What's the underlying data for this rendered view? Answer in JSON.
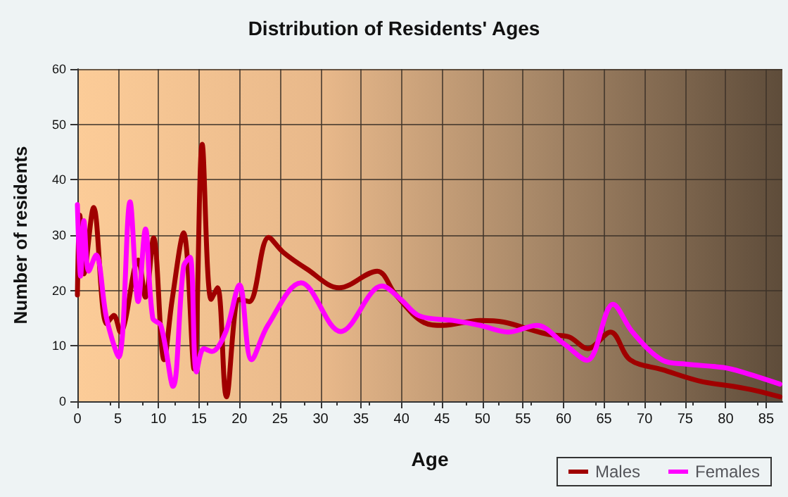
{
  "chart_data": {
    "type": "line",
    "title": "Distribution of Residents' Ages",
    "xlabel": "Age",
    "ylabel": "Number of residents",
    "xlim": [
      0,
      87
    ],
    "xticks": [
      0,
      5,
      10,
      15,
      20,
      25,
      30,
      35,
      40,
      45,
      50,
      55,
      60,
      65,
      70,
      75,
      80,
      85
    ],
    "ylim": [
      0,
      60
    ],
    "yticks": [
      0,
      10,
      20,
      30,
      40,
      50,
      60
    ],
    "grid": true,
    "legend": "bottom right",
    "marker": "none",
    "line_style": "solid",
    "series": [
      {
        "name": "Males",
        "color": "#a00000",
        "x": [
          0,
          0.3,
          0.8,
          2,
          3.6,
          4.5,
          5.3,
          7.5,
          8.4,
          9.4,
          10.7,
          11.7,
          13.1,
          14.4,
          15.4,
          16.5,
          17.3,
          18.4,
          20,
          21.2,
          23.6,
          25.4,
          28.3,
          32.3,
          37,
          39.3,
          42.8,
          45.1,
          49.7,
          52.6,
          56.7,
          58.4,
          60.7,
          63,
          65.8,
          68.2,
          72.2,
          76.9,
          80.9,
          83.8,
          86.7
        ],
        "values": [
          19.2,
          33.6,
          23,
          35,
          14,
          15.5,
          12.5,
          25.5,
          18.8,
          29.5,
          7.5,
          18.4,
          30.4,
          5.8,
          46.4,
          18.4,
          20.5,
          0.8,
          18.4,
          18,
          29.6,
          26.9,
          23.9,
          20.5,
          23.5,
          19.2,
          14.2,
          13.7,
          14.6,
          14.3,
          12.6,
          12,
          11.6,
          9.5,
          12.5,
          7.5,
          5.7,
          3.6,
          2.7,
          1.9,
          0.8
        ]
      },
      {
        "name": "Females",
        "color": "#ff00ff",
        "x": [
          0,
          0.4,
          0.8,
          1.4,
          2.3,
          3.6,
          5.1,
          6.5,
          7.5,
          8.4,
          9.3,
          10.3,
          11.8,
          13.1,
          13.9,
          14.7,
          15.6,
          16.6,
          18.3,
          20,
          21.5,
          23.5,
          27.6,
          32.5,
          37.6,
          39.9,
          42.2,
          46.3,
          49.7,
          53.2,
          56.7,
          60.1,
          62.9,
          66.1,
          68.5,
          72.2,
          75.1,
          79.7,
          82,
          86.7
        ],
        "values": [
          35.5,
          22.6,
          32.6,
          23.5,
          26.4,
          15,
          8,
          36,
          18,
          31.1,
          15,
          13.7,
          2.7,
          24.3,
          26,
          5.3,
          9.5,
          9,
          12.5,
          21,
          7.5,
          13.7,
          21.4,
          12.6,
          20.8,
          18.4,
          15.4,
          14.6,
          13.7,
          12.5,
          13.7,
          10.3,
          7.4,
          17.5,
          12.5,
          7.4,
          6.7,
          6.1,
          5.3,
          3.1
        ]
      }
    ]
  }
}
